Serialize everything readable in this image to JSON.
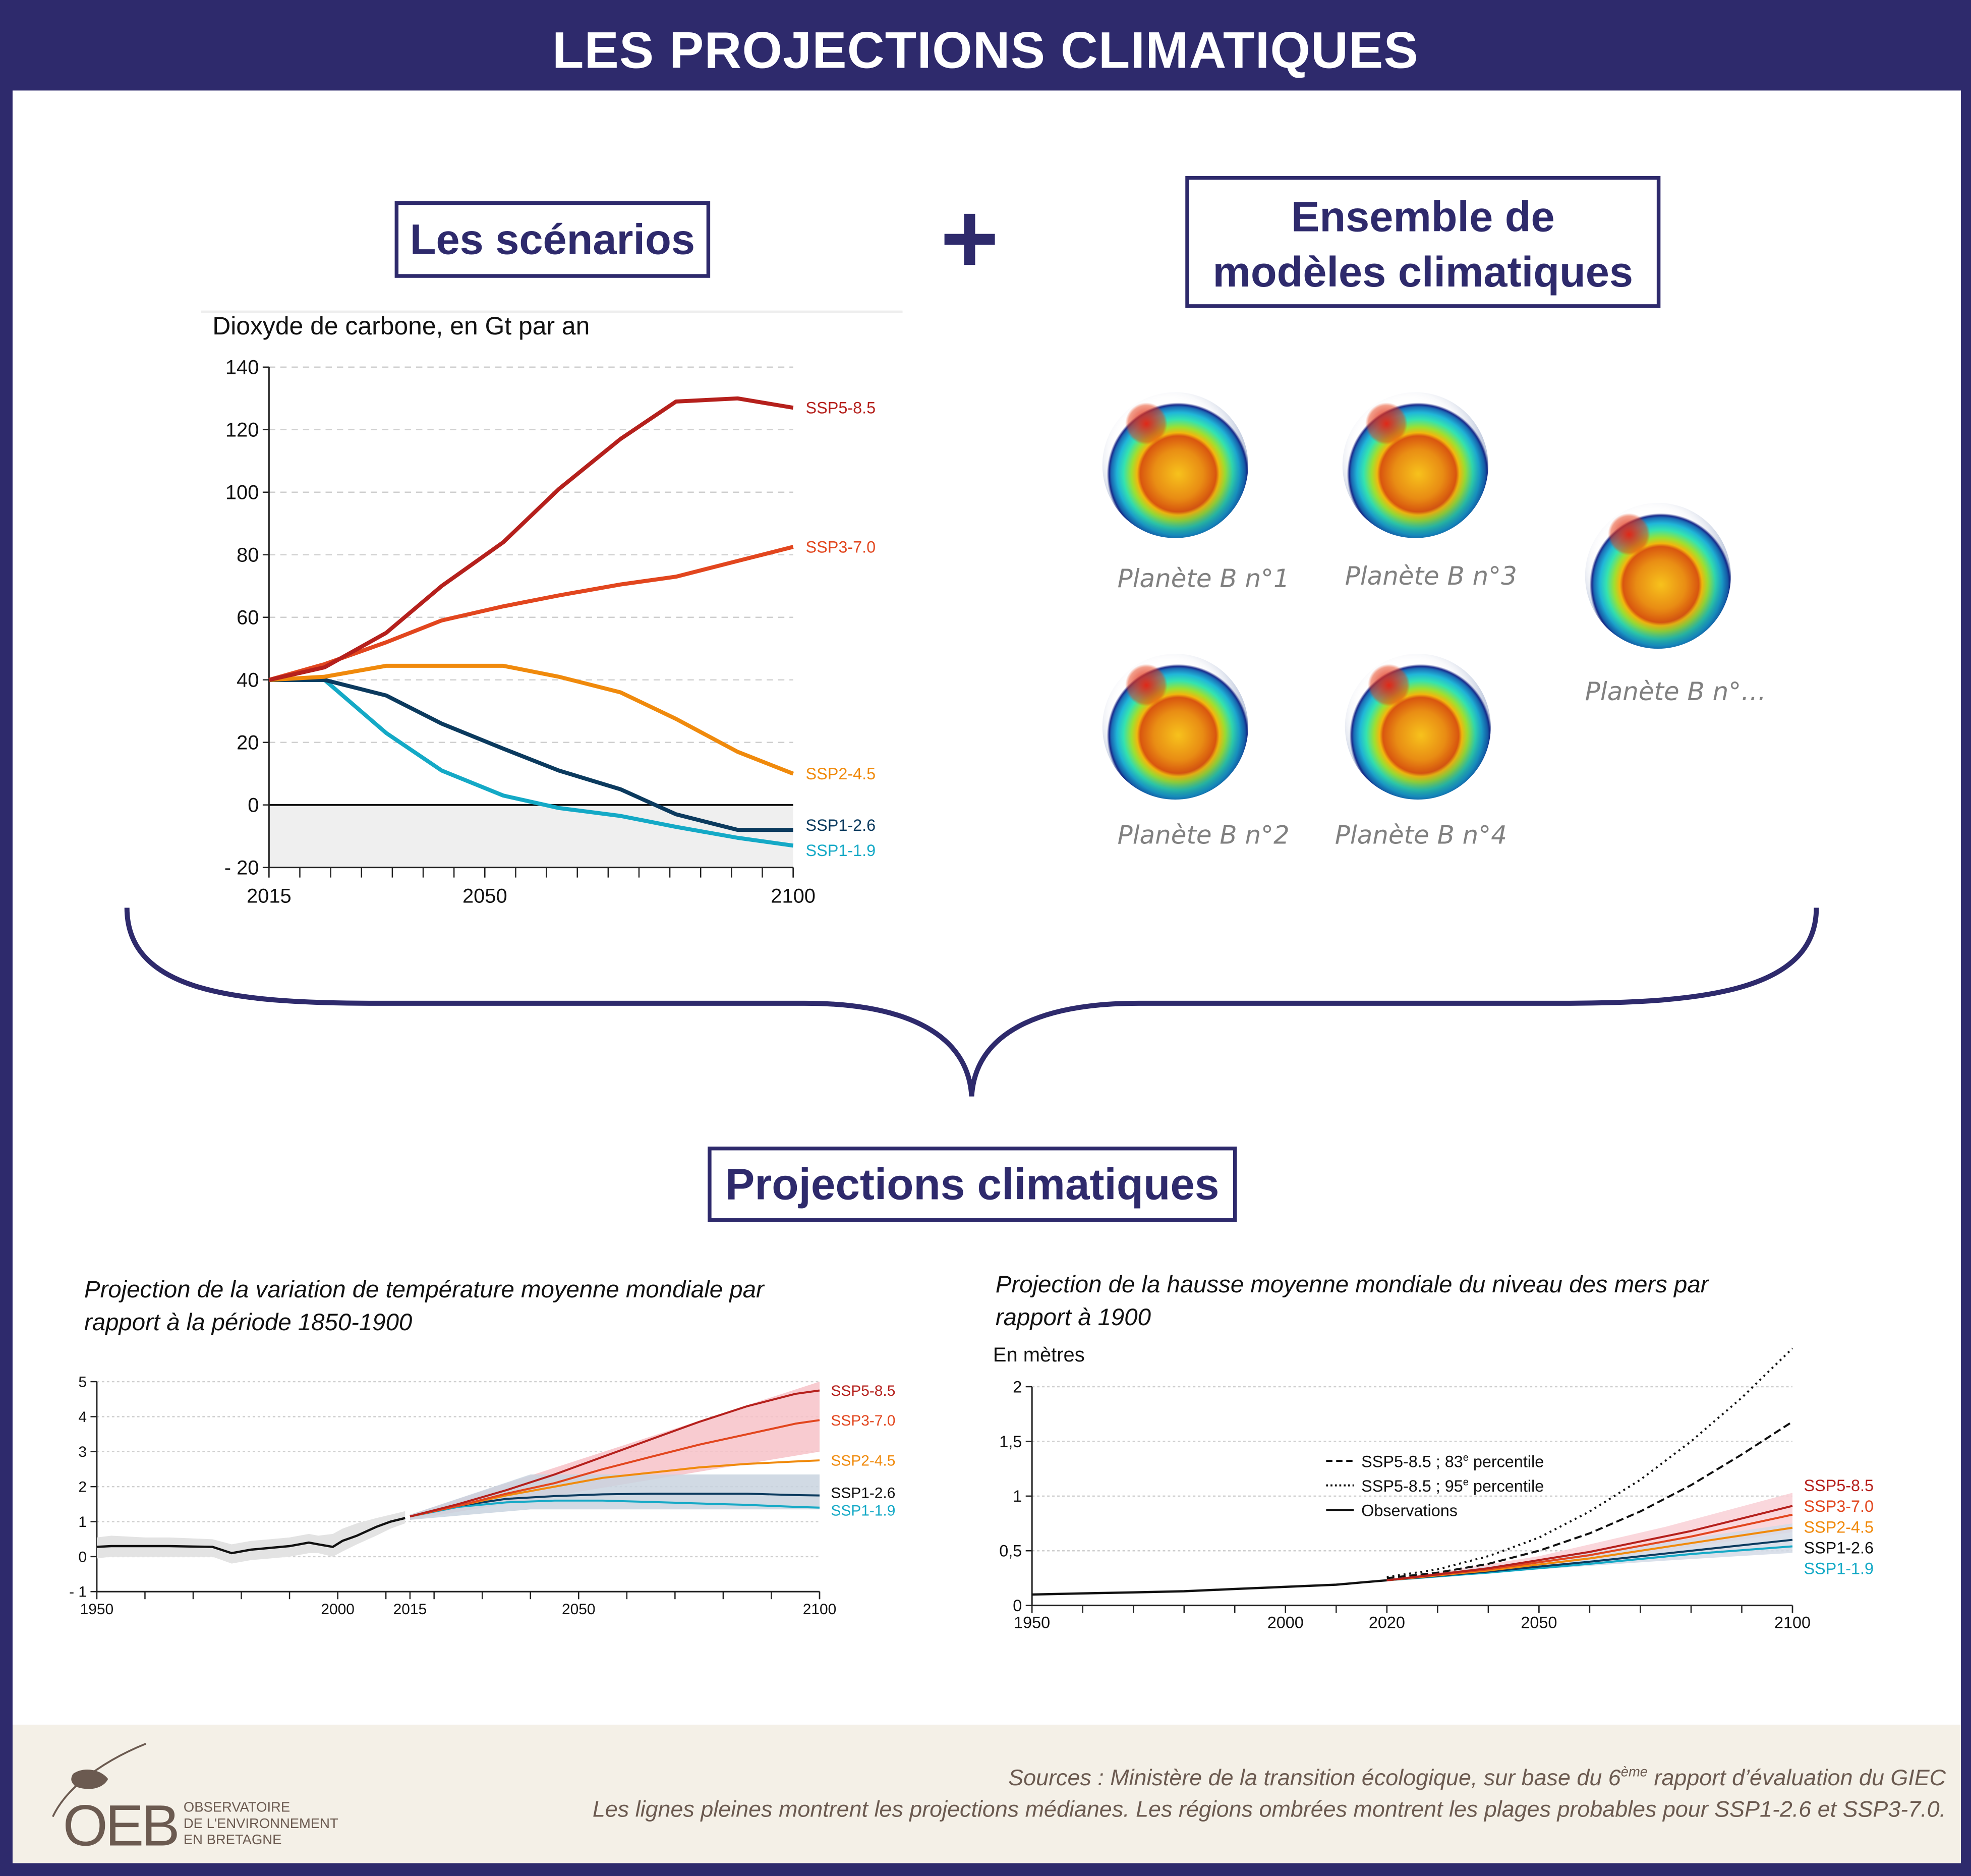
{
  "header": {
    "title": "LES PROJECTIONS CLIMATIQUES"
  },
  "boxes": {
    "scenarios": "Les scénarios",
    "plus": "+",
    "ensemble_line1": "Ensemble de",
    "ensemble_line2": "modèles climatiques",
    "projections": "Projections climatiques"
  },
  "models": [
    {
      "label": "Planète B n°1"
    },
    {
      "label": "Planète B n°3"
    },
    {
      "label": "Planète B n°…"
    },
    {
      "label": "Planète B n°2"
    },
    {
      "label": "Planète B n°4"
    }
  ],
  "charts_text": {
    "co2_title": "Dioxyde de carbone, en Gt par an",
    "temp_title_1": "Projection de la variation de température moyenne mondiale par",
    "temp_title_2": "rapport à la période 1850-1900",
    "sea_title_1": "Projection de la hausse moyenne mondiale du niveau des mers par",
    "sea_title_2": "rapport à 1900",
    "sea_unit": "En mètres"
  },
  "colors": {
    "navy": "#2e2a6c",
    "ssp585": "#b5201c",
    "ssp370": "#e2461e",
    "ssp245": "#f08a0c",
    "ssp126": "#0b3a5e",
    "ssp119": "#14a9c6",
    "footer_bg": "#f4f0e7"
  },
  "chart_data": [
    {
      "id": "co2",
      "type": "line",
      "title": "Dioxyde de carbone, en Gt par an",
      "ylim": [
        -20,
        140
      ],
      "yticks": [
        {
          "v": 140,
          "l": "140"
        },
        {
          "v": 120,
          "l": "120"
        },
        {
          "v": 100,
          "l": "100"
        },
        {
          "v": 80,
          "l": "80"
        },
        {
          "v": 60,
          "l": "60"
        },
        {
          "v": 40,
          "l": "40"
        },
        {
          "v": 20,
          "l": "20"
        },
        {
          "v": 0,
          "l": "0"
        },
        {
          "v": -20,
          "l": "- 20"
        }
      ],
      "xlim": [
        2015,
        2100
      ],
      "xticks": [
        {
          "v": 2015,
          "l": "2015"
        },
        {
          "v": 2050,
          "l": "2050"
        },
        {
          "v": 2100,
          "l": "2100"
        }
      ],
      "x": [
        2015,
        2024,
        2034,
        2043,
        2053,
        2062,
        2072,
        2081,
        2091,
        2100
      ],
      "series": [
        {
          "name": "SSP5-8.5",
          "color": "#b5201c",
          "values": [
            40,
            44,
            55,
            70,
            84,
            101,
            117,
            129,
            130,
            127
          ]
        },
        {
          "name": "SSP3-7.0",
          "color": "#e2461e",
          "values": [
            40,
            45,
            52,
            59,
            63.5,
            67,
            70.5,
            73,
            78,
            82.5
          ]
        },
        {
          "name": "SSP2-4.5",
          "color": "#f08a0c",
          "values": [
            40,
            41,
            44.5,
            44.5,
            44.5,
            41,
            36,
            27.5,
            17,
            10
          ]
        },
        {
          "name": "SSP1-2.6",
          "color": "#0b3a5e",
          "values": [
            40,
            40,
            35,
            26,
            18,
            11,
            5,
            -3,
            -8,
            -8
          ]
        },
        {
          "name": "SSP1-1.9",
          "color": "#14a9c6",
          "values": [
            40,
            40,
            23,
            11,
            3,
            -1,
            -3.5,
            -7,
            -10.5,
            -13
          ]
        }
      ]
    },
    {
      "id": "temp",
      "type": "line",
      "ylim": [
        -1,
        5
      ],
      "yticks": [
        {
          "v": 5,
          "l": "5"
        },
        {
          "v": 4,
          "l": "4"
        },
        {
          "v": 3,
          "l": "3"
        },
        {
          "v": 2,
          "l": "2"
        },
        {
          "v": 1,
          "l": "1"
        },
        {
          "v": 0,
          "l": "0"
        },
        {
          "v": -1,
          "l": "- 1"
        }
      ],
      "xlim": [
        1950,
        2100
      ],
      "xticks": [
        {
          "v": 1950,
          "l": "1950"
        },
        {
          "v": 2000,
          "l": "2000"
        },
        {
          "v": 2015,
          "l": "2015"
        },
        {
          "v": 2050,
          "l": "2050"
        },
        {
          "v": 2100,
          "l": "2100"
        }
      ],
      "history": {
        "color": "#111111",
        "x": [
          1950,
          1953,
          1960,
          1965,
          1974,
          1978,
          1982,
          1986,
          1990,
          1994,
          1996,
          1999,
          2001,
          2004,
          2008,
          2011,
          2014
        ],
        "values": [
          0.28,
          0.3,
          0.3,
          0.3,
          0.28,
          0.1,
          0.2,
          0.25,
          0.3,
          0.4,
          0.35,
          0.28,
          0.45,
          0.6,
          0.85,
          1.0,
          1.1
        ],
        "band_upper": [
          0.55,
          0.6,
          0.55,
          0.55,
          0.5,
          0.35,
          0.45,
          0.5,
          0.55,
          0.65,
          0.6,
          0.65,
          0.8,
          0.95,
          1.1,
          1.2,
          1.3
        ],
        "band_lower": [
          -0.05,
          0,
          0,
          0,
          0,
          -0.2,
          -0.1,
          -0.05,
          0,
          0.1,
          0.1,
          0,
          0.15,
          0.35,
          0.6,
          0.8,
          0.95
        ]
      },
      "bands": [
        {
          "for": "SSP3-7.0",
          "color": "#f7c2c8",
          "x": [
            2015,
            2100
          ],
          "upper": [
            1.2,
            5.0
          ],
          "lower": [
            1.05,
            3.0
          ]
        },
        {
          "for": "SSP1-2.6",
          "color": "#c9d3df",
          "x": [
            2015,
            2040,
            2100
          ],
          "upper": [
            1.2,
            2.35,
            2.35
          ],
          "lower": [
            1.05,
            1.35,
            1.35
          ]
        }
      ],
      "x": [
        2015,
        2025,
        2035,
        2045,
        2055,
        2065,
        2075,
        2085,
        2095,
        2100
      ],
      "series": [
        {
          "name": "SSP5-8.5",
          "color": "#b5201c",
          "values": [
            1.15,
            1.5,
            1.9,
            2.35,
            2.85,
            3.35,
            3.85,
            4.3,
            4.65,
            4.75
          ]
        },
        {
          "name": "SSP3-7.0",
          "color": "#e2461e",
          "values": [
            1.15,
            1.45,
            1.8,
            2.1,
            2.5,
            2.85,
            3.2,
            3.5,
            3.8,
            3.9
          ]
        },
        {
          "name": "SSP2-4.5",
          "color": "#f08a0c",
          "values": [
            1.15,
            1.45,
            1.75,
            2.0,
            2.25,
            2.4,
            2.55,
            2.65,
            2.72,
            2.75
          ]
        },
        {
          "name": "SSP1-2.6",
          "color": "#0b3a5e",
          "values": [
            1.15,
            1.45,
            1.65,
            1.73,
            1.78,
            1.8,
            1.8,
            1.8,
            1.76,
            1.75
          ]
        },
        {
          "name": "SSP1-1.9",
          "color": "#14a9c6",
          "values": [
            1.15,
            1.42,
            1.55,
            1.6,
            1.6,
            1.56,
            1.52,
            1.48,
            1.42,
            1.4
          ]
        }
      ]
    },
    {
      "id": "sea",
      "type": "line",
      "ylabel": "En mètres",
      "ylim": [
        0,
        2
      ],
      "yticks": [
        {
          "v": 2,
          "l": "2"
        },
        {
          "v": 1.5,
          "l": "1,5"
        },
        {
          "v": 1,
          "l": "1"
        },
        {
          "v": 0.5,
          "l": "0,5"
        },
        {
          "v": 0,
          "l": "0"
        }
      ],
      "xlim": [
        1950,
        2100
      ],
      "xticks": [
        {
          "v": 1950,
          "l": "1950"
        },
        {
          "v": 2000,
          "l": "2000"
        },
        {
          "v": 2020,
          "l": "2020"
        },
        {
          "v": 2050,
          "l": "2050"
        },
        {
          "v": 2100,
          "l": "2100"
        }
      ],
      "history": {
        "name": "Observations",
        "color": "#111111",
        "x": [
          1950,
          1960,
          1970,
          1980,
          1990,
          2000,
          2010,
          2015,
          2020
        ],
        "values": [
          0.1,
          0.11,
          0.12,
          0.13,
          0.15,
          0.17,
          0.19,
          0.21,
          0.23
        ]
      },
      "bands": [
        {
          "for": "SSP3-7.0",
          "color": "#f9d0d6",
          "x": [
            2020,
            2050,
            2075,
            2100
          ],
          "upper": [
            0.23,
            0.45,
            0.72,
            1.03
          ],
          "lower": [
            0.23,
            0.36,
            0.5,
            0.67
          ]
        },
        {
          "for": "SSP1-2.6",
          "color": "#d4dbe6",
          "x": [
            2020,
            2050,
            2075,
            2100
          ],
          "upper": [
            0.23,
            0.42,
            0.58,
            0.75
          ],
          "lower": [
            0.23,
            0.33,
            0.41,
            0.48
          ]
        }
      ],
      "percentiles": [
        {
          "name": "SSP5-8.5 ; 83e percentile",
          "sup": "e",
          "style": "dashed",
          "x": [
            2020,
            2030,
            2040,
            2050,
            2060,
            2070,
            2080,
            2090,
            2100
          ],
          "values": [
            0.25,
            0.3,
            0.38,
            0.5,
            0.66,
            0.86,
            1.1,
            1.38,
            1.68
          ]
        },
        {
          "name": "SSP5-8.5 ; 95e percentile",
          "sup": "e",
          "style": "dotted",
          "x": [
            2020,
            2030,
            2040,
            2050,
            2060,
            2070,
            2080,
            2090,
            2100
          ],
          "values": [
            0.26,
            0.33,
            0.45,
            0.62,
            0.86,
            1.15,
            1.5,
            1.9,
            2.35
          ]
        }
      ],
      "legend": [
        {
          "label": "SSP5-8.5 ; 83",
          "sup": "e",
          "rest": " percentile",
          "style": "dashed"
        },
        {
          "label": "SSP5-8.5 ; 95",
          "sup": "e",
          "rest": " percentile",
          "style": "dotted"
        },
        {
          "label": "Observations",
          "sup": "",
          "rest": "",
          "style": "solid"
        }
      ],
      "x": [
        2020,
        2040,
        2060,
        2080,
        2100
      ],
      "series": [
        {
          "name": "SSP5-8.5",
          "color": "#b5201c",
          "values": [
            0.23,
            0.34,
            0.49,
            0.68,
            0.91
          ]
        },
        {
          "name": "SSP3-7.0",
          "color": "#e2461e",
          "values": [
            0.23,
            0.33,
            0.46,
            0.63,
            0.83
          ]
        },
        {
          "name": "SSP2-4.5",
          "color": "#f08a0c",
          "values": [
            0.23,
            0.32,
            0.43,
            0.57,
            0.71
          ]
        },
        {
          "name": "SSP1-2.6",
          "color": "#0b3a5e",
          "values": [
            0.23,
            0.31,
            0.4,
            0.5,
            0.6
          ]
        },
        {
          "name": "SSP1-1.9",
          "color": "#14a9c6",
          "values": [
            0.23,
            0.3,
            0.38,
            0.47,
            0.54
          ]
        }
      ]
    }
  ],
  "footer": {
    "sources_pre": "Sources : Ministère de la transition écologique, sur base du 6",
    "sources_sup": "ème",
    "sources_post": " rapport d’évaluation du GIEC",
    "note": "Les lignes pleines montrent les projections médianes. Les régions ombrées montrent les plages probables pour SSP1-2.6 et SSP3-7.0.",
    "logo": "OEB",
    "logo_sub": [
      "OBSERVATOIRE",
      "DE L'ENVIRONNEMENT",
      "EN BRETAGNE"
    ]
  }
}
